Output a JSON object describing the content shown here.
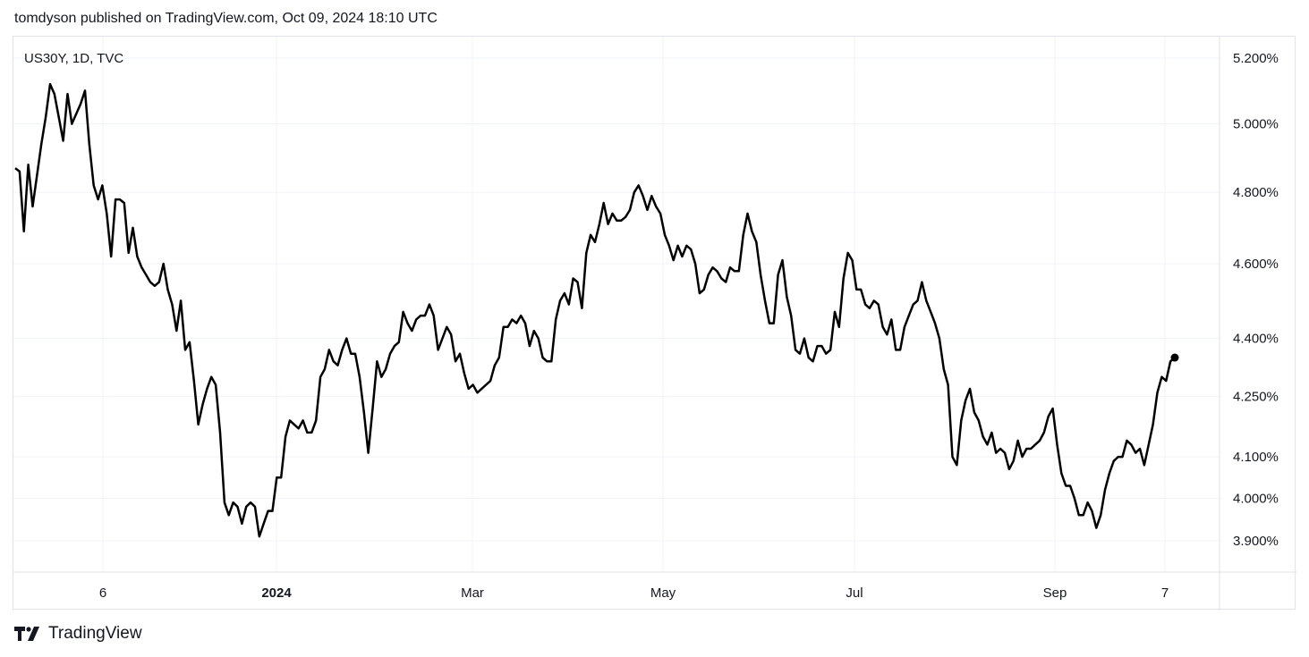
{
  "header": {
    "publisher_line": "tomdyson published on TradingView.com, Oct 09, 2024 18:10 UTC"
  },
  "footer": {
    "brand": "TradingView",
    "logo_icon": "tradingview-logo-icon"
  },
  "colors": {
    "line": "#000000",
    "grid": "#f0f3fa",
    "border": "#e0e3eb",
    "text": "#131722"
  },
  "chart_data": {
    "type": "line",
    "title": "US30Y, 1D, TVC",
    "symbol": "US30Y",
    "interval": "1D",
    "exchange": "TVC",
    "x_tick_labels": [
      "6",
      "2024",
      "Mar",
      "May",
      "Jul",
      "Sep",
      "7"
    ],
    "y_tick_labels": [
      "5.200%",
      "5.000%",
      "4.800%",
      "4.600%",
      "4.400%",
      "4.250%",
      "4.100%",
      "4.000%",
      "3.900%"
    ],
    "y_tick_values": [
      5.2,
      5.0,
      4.8,
      4.6,
      4.4,
      4.25,
      4.1,
      4.0,
      3.9
    ],
    "y_scale": "log",
    "ylim": [
      3.82,
      5.28
    ],
    "grid": true,
    "last_point_marker": true,
    "series": [
      {
        "values": [
          4.87,
          4.86,
          4.69,
          4.88,
          4.76,
          4.85,
          4.94,
          5.02,
          5.12,
          5.09,
          5.02,
          4.95,
          5.09,
          5.0,
          5.03,
          5.06,
          5.1,
          4.94,
          4.82,
          4.78,
          4.82,
          4.74,
          4.62,
          4.78,
          4.78,
          4.77,
          4.63,
          4.7,
          4.62,
          4.59,
          4.57,
          4.55,
          4.54,
          4.55,
          4.6,
          4.53,
          4.49,
          4.42,
          4.5,
          4.37,
          4.39,
          4.29,
          4.18,
          4.23,
          4.27,
          4.3,
          4.28,
          4.16,
          3.99,
          3.96,
          3.99,
          3.98,
          3.94,
          3.98,
          3.99,
          3.98,
          3.91,
          3.94,
          3.97,
          3.97,
          4.05,
          4.05,
          4.15,
          4.19,
          4.18,
          4.17,
          4.19,
          4.16,
          4.16,
          4.19,
          4.3,
          4.32,
          4.37,
          4.34,
          4.33,
          4.37,
          4.4,
          4.36,
          4.36,
          4.3,
          4.21,
          4.11,
          4.22,
          4.34,
          4.3,
          4.32,
          4.36,
          4.38,
          4.39,
          4.47,
          4.44,
          4.42,
          4.45,
          4.46,
          4.46,
          4.49,
          4.46,
          4.37,
          4.4,
          4.43,
          4.41,
          4.34,
          4.36,
          4.31,
          4.27,
          4.28,
          4.26,
          4.27,
          4.28,
          4.29,
          4.33,
          4.35,
          4.43,
          4.43,
          4.45,
          4.44,
          4.46,
          4.44,
          4.38,
          4.42,
          4.4,
          4.35,
          4.34,
          4.34,
          4.45,
          4.5,
          4.52,
          4.49,
          4.56,
          4.55,
          4.48,
          4.63,
          4.68,
          4.66,
          4.71,
          4.77,
          4.71,
          4.74,
          4.72,
          4.72,
          4.73,
          4.75,
          4.8,
          4.82,
          4.79,
          4.75,
          4.79,
          4.76,
          4.74,
          4.68,
          4.65,
          4.61,
          4.65,
          4.62,
          4.65,
          4.64,
          4.6,
          4.52,
          4.53,
          4.57,
          4.59,
          4.58,
          4.56,
          4.55,
          4.59,
          4.58,
          4.58,
          4.68,
          4.74,
          4.69,
          4.66,
          4.57,
          4.5,
          4.44,
          4.44,
          4.57,
          4.61,
          4.51,
          4.46,
          4.37,
          4.36,
          4.4,
          4.35,
          4.34,
          4.38,
          4.38,
          4.36,
          4.37,
          4.47,
          4.43,
          4.56,
          4.63,
          4.61,
          4.53,
          4.53,
          4.49,
          4.48,
          4.5,
          4.49,
          4.43,
          4.41,
          4.45,
          4.37,
          4.37,
          4.43,
          4.46,
          4.49,
          4.5,
          4.55,
          4.5,
          4.47,
          4.44,
          4.4,
          4.32,
          4.28,
          4.1,
          4.08,
          4.19,
          4.24,
          4.27,
          4.21,
          4.19,
          4.15,
          4.13,
          4.16,
          4.11,
          4.12,
          4.11,
          4.07,
          4.09,
          4.14,
          4.1,
          4.12,
          4.12,
          4.13,
          4.14,
          4.16,
          4.2,
          4.22,
          4.13,
          4.06,
          4.03,
          4.03,
          4.0,
          3.96,
          3.96,
          3.99,
          3.97,
          3.93,
          3.96,
          4.02,
          4.06,
          4.09,
          4.1,
          4.1,
          4.14,
          4.13,
          4.11,
          4.12,
          4.08,
          4.13,
          4.18,
          4.26,
          4.3,
          4.29,
          4.34,
          4.35
        ]
      }
    ]
  }
}
